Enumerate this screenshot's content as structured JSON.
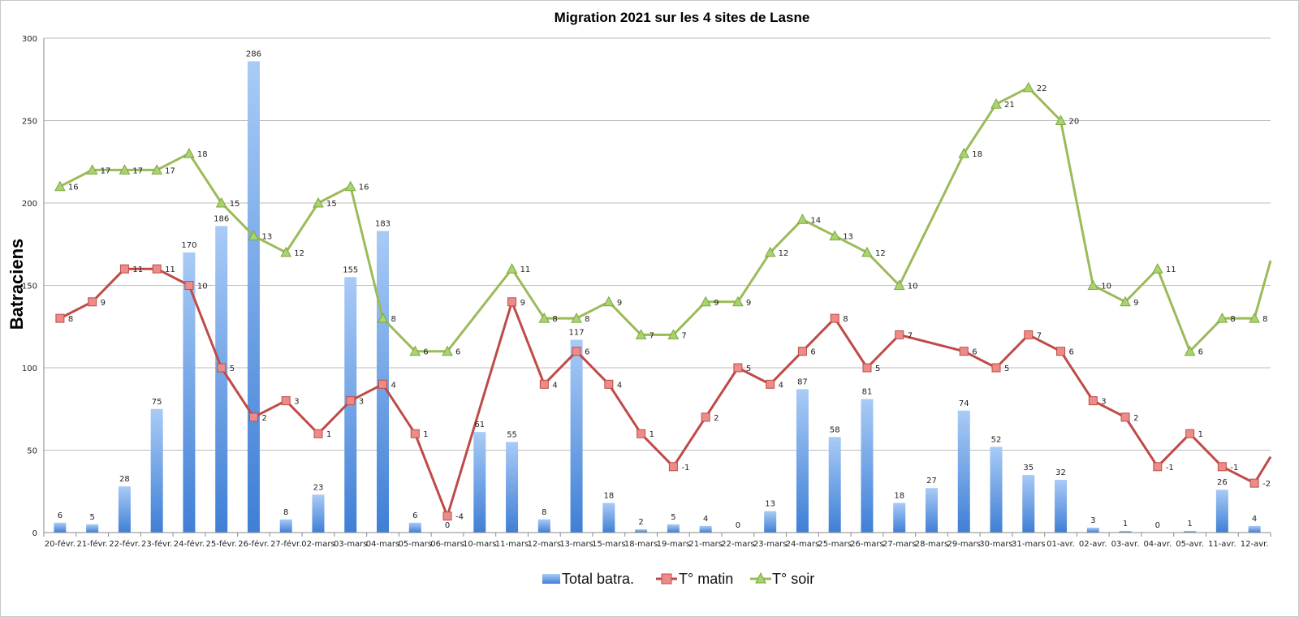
{
  "chart_data": {
    "type": "bar+line",
    "title": "Migration 2021 sur les 4  sites de Lasne",
    "xlabel": "",
    "ylabel": "Batraciens",
    "ylim": [
      0,
      300
    ],
    "yticks": [
      0,
      50,
      100,
      150,
      200,
      250,
      300
    ],
    "grid": true,
    "legend_position": "bottom",
    "categories": [
      "20-févr.",
      "21-févr.",
      "22-févr.",
      "23-févr.",
      "24-févr.",
      "25-févr.",
      "26-févr.",
      "27-févr.",
      "02-mars",
      "03-mars",
      "04-mars",
      "05-mars",
      "06-mars",
      "10-mars",
      "11-mars",
      "12-mars",
      "13-mars",
      "15-mars",
      "18-mars",
      "19-mars",
      "21-mars",
      "22-mars",
      "23-mars",
      "24-mars",
      "25-mars",
      "26-mars",
      "27-mars",
      "28-mars",
      "29-mars",
      "30-mars",
      "31-mars",
      "01-avr.",
      "02-avr.",
      "03-avr.",
      "04-avr.",
      "05-avr.",
      "11-avr.",
      "12-avr."
    ],
    "series": [
      {
        "name": "Total batra.",
        "type": "bar",
        "color": "#4f8ee0",
        "color_light": "#a9cbf6",
        "values": [
          6,
          5,
          28,
          75,
          170,
          186,
          286,
          8,
          23,
          155,
          183,
          6,
          0,
          61,
          55,
          8,
          117,
          18,
          2,
          5,
          4,
          0,
          13,
          87,
          58,
          81,
          18,
          27,
          74,
          52,
          35,
          32,
          3,
          1,
          0,
          1,
          26,
          4
        ]
      },
      {
        "name": "T° matin",
        "type": "line",
        "color": "#be4b48",
        "marker": "square",
        "marker_color": "#ec8c89",
        "axis_values": [
          130,
          140,
          160,
          160,
          150,
          100,
          70,
          80,
          60,
          80,
          90,
          60,
          10,
          null,
          140,
          90,
          110,
          90,
          60,
          40,
          70,
          100,
          90,
          110,
          130,
          100,
          120,
          null,
          110,
          100,
          120,
          110,
          80,
          70,
          40,
          60,
          40,
          30
        ],
        "labels": [
          "8",
          "9",
          "11",
          "11",
          "10",
          "5",
          "2",
          "3",
          "1",
          "3",
          "4",
          "1",
          "-4",
          null,
          "9",
          "4",
          "6",
          "4",
          "1",
          "-1",
          "2",
          "5",
          "4",
          "6",
          "8",
          "5",
          "7",
          null,
          "6",
          "5",
          "7",
          "6",
          "3",
          "2",
          "-1",
          "1",
          "-1",
          "-2"
        ],
        "trailing_axis_value": 46
      },
      {
        "name": "T° soir",
        "type": "line",
        "color": "#9bbb59",
        "marker": "triangle",
        "marker_color": "#a8d470",
        "axis_values": [
          210,
          220,
          220,
          220,
          230,
          200,
          180,
          170,
          200,
          210,
          130,
          110,
          110,
          null,
          160,
          130,
          130,
          140,
          120,
          120,
          140,
          140,
          170,
          190,
          180,
          170,
          150,
          null,
          230,
          260,
          270,
          250,
          150,
          140,
          160,
          110,
          130,
          130
        ],
        "labels": [
          "16",
          "17",
          "17",
          "17",
          "18",
          "15",
          "13",
          "12",
          "15",
          "16",
          "8",
          "6",
          "6",
          null,
          "11",
          "8",
          "8",
          "9",
          "7",
          "7",
          "9",
          "9",
          "12",
          "14",
          "13",
          "12",
          "10",
          null,
          "18",
          "21",
          "22",
          "20",
          "10",
          "9",
          "11",
          "6",
          "8",
          "8"
        ],
        "trailing_axis_value": 165
      }
    ]
  }
}
